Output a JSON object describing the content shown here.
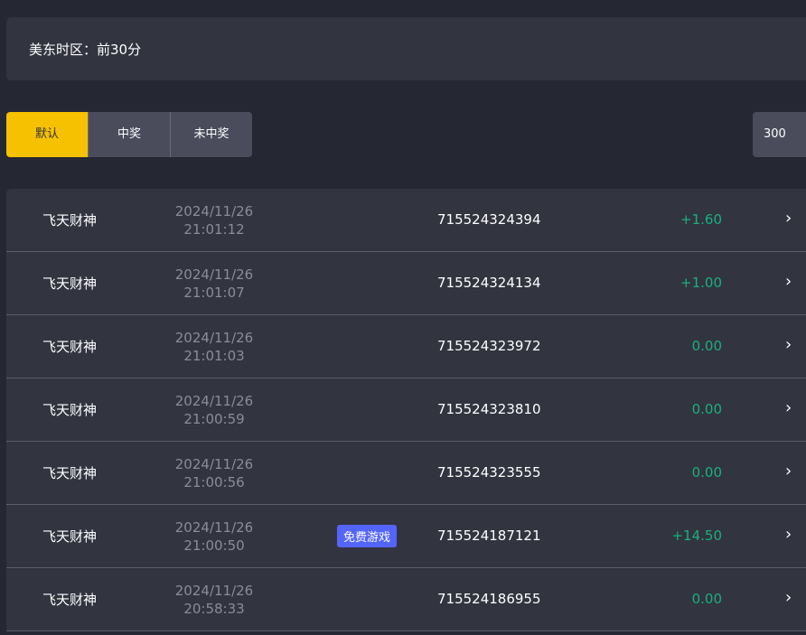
{
  "timezone": {
    "label": "美东时区：前30分"
  },
  "tabs": [
    {
      "label": "默认",
      "active": true
    },
    {
      "label": "中奖"
    },
    {
      "label": "未中奖"
    }
  ],
  "count": "300",
  "colors": {
    "accent": "#f5c100",
    "win": "#1bb07a",
    "badge": "#5465ff"
  },
  "rows": [
    {
      "game": "飞天财神",
      "date": "2024/11/26",
      "time": "21:01:12",
      "badge": "",
      "id": "715524324394",
      "amount": "+1.60"
    },
    {
      "game": "飞天财神",
      "date": "2024/11/26",
      "time": "21:01:07",
      "badge": "",
      "id": "715524324134",
      "amount": "+1.00"
    },
    {
      "game": "飞天财神",
      "date": "2024/11/26",
      "time": "21:01:03",
      "badge": "",
      "id": "715524323972",
      "amount": "0.00"
    },
    {
      "game": "飞天财神",
      "date": "2024/11/26",
      "time": "21:00:59",
      "badge": "",
      "id": "715524323810",
      "amount": "0.00"
    },
    {
      "game": "飞天财神",
      "date": "2024/11/26",
      "time": "21:00:56",
      "badge": "",
      "id": "715524323555",
      "amount": "0.00"
    },
    {
      "game": "飞天财神",
      "date": "2024/11/26",
      "time": "21:00:50",
      "badge": "免费游戏",
      "id": "715524187121",
      "amount": "+14.50"
    },
    {
      "game": "飞天财神",
      "date": "2024/11/26",
      "time": "20:58:33",
      "badge": "",
      "id": "715524186955",
      "amount": "0.00"
    }
  ]
}
